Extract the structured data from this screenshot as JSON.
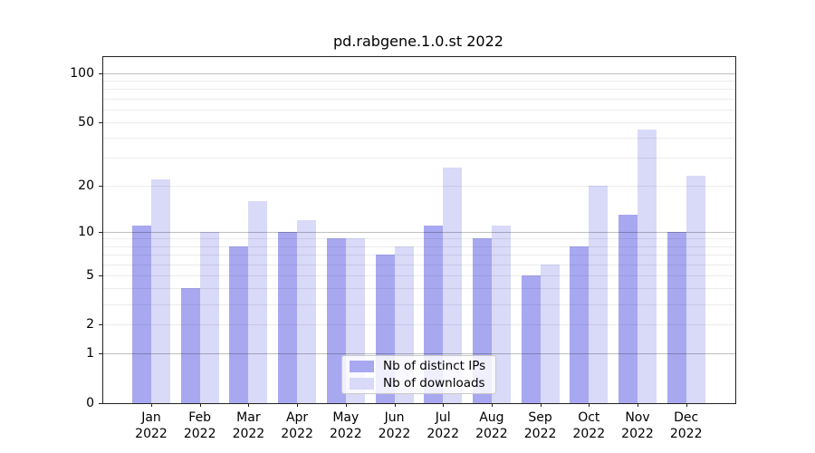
{
  "chart_data": {
    "type": "bar",
    "title": "pd.rabgene.1.0.st 2022",
    "y_scale": "log10(value+1)",
    "grid": "on",
    "legend_position": "inside lower-center",
    "year": "2022",
    "months": [
      "Jan",
      "Feb",
      "Mar",
      "Apr",
      "May",
      "Jun",
      "Jul",
      "Aug",
      "Sep",
      "Oct",
      "Nov",
      "Dec"
    ],
    "categories": [
      "Jan 2022",
      "Feb 2022",
      "Mar 2022",
      "Apr 2022",
      "May 2022",
      "Jun 2022",
      "Jul 2022",
      "Aug 2022",
      "Sep 2022",
      "Oct 2022",
      "Nov 2022",
      "Dec 2022"
    ],
    "series": [
      {
        "key": "distinct-ips",
        "name": "Nb of distinct IPs",
        "color": "#a8a8f0",
        "values": [
          11,
          4,
          8,
          10,
          9,
          7,
          11,
          9,
          5,
          8,
          13,
          10
        ]
      },
      {
        "key": "downloads",
        "name": "Nb of downloads",
        "color": "#d9d9f8",
        "values": [
          22,
          10,
          16,
          12,
          9,
          8,
          26,
          11,
          6,
          20,
          45,
          23
        ]
      }
    ],
    "y_axis": {
      "tick_labels": [
        100,
        50,
        20,
        10,
        5,
        2,
        1,
        0
      ],
      "major_gridlines": [
        1,
        10,
        100
      ],
      "minor_gridlines": [
        2,
        3,
        4,
        5,
        6,
        7,
        8,
        9,
        20,
        30,
        40,
        50,
        60,
        70,
        80,
        90
      ],
      "ylim": [
        0,
        126
      ]
    }
  }
}
